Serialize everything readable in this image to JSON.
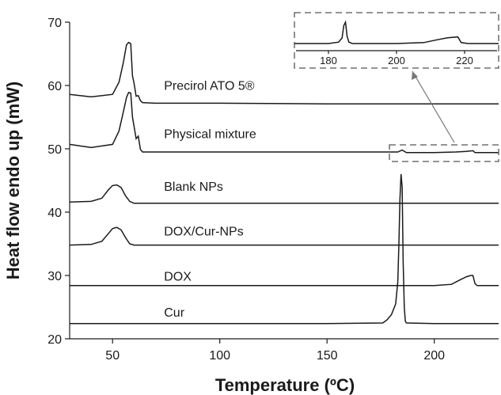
{
  "chart_data": {
    "type": "line",
    "xlabel": "Temperature (ºC)",
    "ylabel": "Heat flow endo up (mW)",
    "xlim": [
      30,
      230
    ],
    "ylim": [
      20,
      70
    ],
    "xticks": [
      50,
      100,
      150,
      200
    ],
    "yticks": [
      20,
      30,
      40,
      50,
      60,
      70
    ],
    "series": [
      {
        "name": "Precirol ATO 5®",
        "label_at": [
          74,
          59.3
        ],
        "x": [
          30,
          40,
          50,
          53,
          55,
          56.5,
          57.5,
          58.5,
          59.3,
          60,
          61,
          62,
          63,
          64,
          70,
          100,
          150,
          200,
          230
        ],
        "y": [
          58.6,
          58.2,
          58.6,
          60.5,
          63.6,
          66.4,
          66.8,
          66.6,
          61.5,
          60.4,
          58.3,
          58.4,
          57.6,
          57.3,
          57.2,
          57.2,
          57.1,
          57.1,
          57.1
        ]
      },
      {
        "name": "Physical mixture",
        "label_at": [
          74,
          51.7
        ],
        "x": [
          30,
          40,
          50,
          53,
          55,
          56.5,
          57.5,
          58.5,
          59.3,
          60,
          61,
          62,
          63,
          64,
          70,
          100,
          150,
          183,
          185,
          187,
          200,
          210,
          215,
          218,
          219,
          221,
          230
        ],
        "y": [
          50.7,
          50.2,
          50.7,
          52.8,
          55.8,
          58.1,
          58.9,
          58.8,
          55.0,
          53.6,
          51.6,
          52.0,
          49.9,
          49.5,
          49.5,
          49.5,
          49.5,
          49.5,
          49.8,
          49.4,
          49.4,
          49.5,
          49.6,
          49.7,
          49.4,
          49.4,
          49.4
        ]
      },
      {
        "name": "Blank NPs",
        "label_at": [
          74,
          43.4
        ],
        "x": [
          30,
          40,
          45,
          48,
          50,
          52,
          54,
          56,
          58,
          60,
          62,
          70,
          100,
          150,
          200,
          230
        ],
        "y": [
          41.6,
          41.7,
          42.2,
          43.5,
          44.2,
          44.3,
          43.9,
          42.6,
          41.7,
          41.4,
          41.4,
          41.4,
          41.4,
          41.4,
          41.4,
          41.4
        ]
      },
      {
        "name": "DOX/Cur-NPs",
        "label_at": [
          74,
          36.3
        ],
        "x": [
          30,
          40,
          45,
          48,
          50,
          52,
          54,
          56,
          58,
          60,
          62,
          70,
          100,
          150,
          200,
          230
        ],
        "y": [
          34.8,
          34.9,
          35.4,
          36.6,
          37.4,
          37.6,
          37.2,
          36.0,
          35.0,
          34.8,
          34.8,
          34.8,
          34.8,
          34.8,
          34.8,
          34.8
        ]
      },
      {
        "name": "DOX",
        "label_at": [
          74,
          29.2
        ],
        "x": [
          30,
          100,
          150,
          200,
          208,
          212,
          215,
          217,
          218,
          219,
          220,
          230
        ],
        "y": [
          28.4,
          28.4,
          28.4,
          28.4,
          28.6,
          29.3,
          29.8,
          30.0,
          30.0,
          28.7,
          28.4,
          28.4
        ]
      },
      {
        "name": "Cur",
        "label_at": [
          74,
          23.5
        ],
        "x": [
          30,
          100,
          150,
          176,
          178,
          180,
          182,
          183,
          183.5,
          184,
          184.5,
          185,
          185.5,
          186,
          186.5,
          187,
          200,
          230
        ],
        "y": [
          22.4,
          22.4,
          22.4,
          22.5,
          23.0,
          23.8,
          25.5,
          29.0,
          35.0,
          42.0,
          46.0,
          44.0,
          32.0,
          25.0,
          22.8,
          22.5,
          22.4,
          22.4
        ]
      }
    ],
    "inset": {
      "xlim": [
        170,
        230
      ],
      "xticks": [
        180,
        200,
        220
      ],
      "x": [
        170,
        180,
        183,
        184,
        184.5,
        185,
        185.5,
        186,
        187,
        200,
        208,
        212,
        215,
        218,
        219,
        221,
        230
      ],
      "y": [
        0,
        0,
        0.3,
        1.2,
        3.8,
        4.5,
        1.5,
        0.3,
        0,
        0,
        0.2,
        0.8,
        1.2,
        1.4,
        0.2,
        0,
        0
      ]
    }
  }
}
